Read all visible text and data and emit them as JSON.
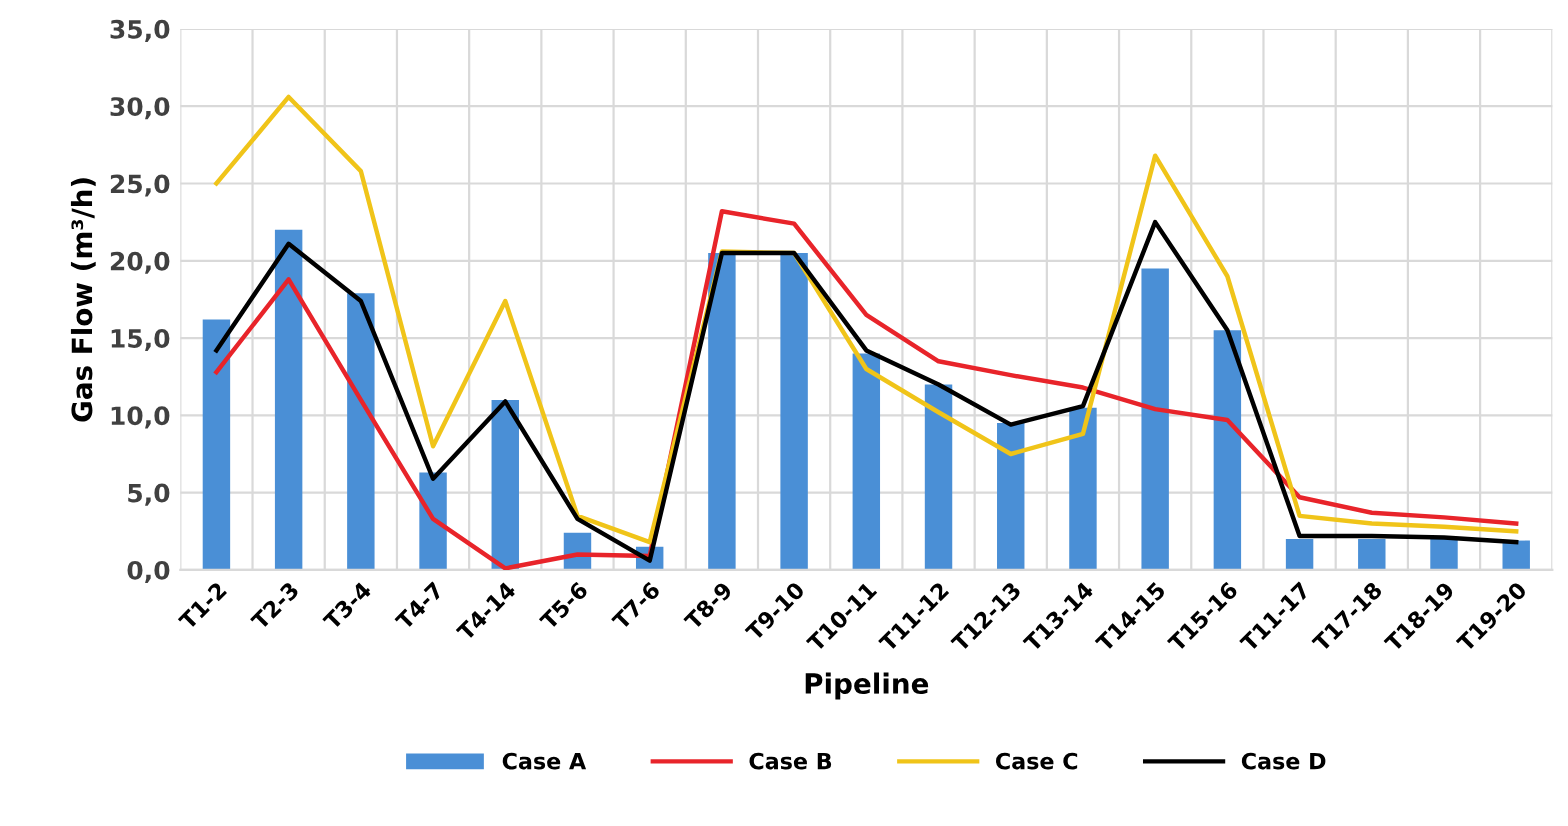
{
  "chart_data": {
    "type": "bar",
    "xlabel": "Pipeline",
    "ylabel": "Gas Flow (m³/h)",
    "categories": [
      "T1-2",
      "T2-3",
      "T3-4",
      "T4-7",
      "T4-14",
      "T5-6",
      "T7-6",
      "T8-9",
      "T9-10",
      "T10-11",
      "T11-12",
      "T12-13",
      "T13-14",
      "T14-15",
      "T15-16",
      "T11-17",
      "T17-18",
      "T18-19",
      "T19-20"
    ],
    "series": [
      {
        "name": "Case A",
        "color": "#4a8fd6",
        "values": [
          16.2,
          22.0,
          17.9,
          6.3,
          11.0,
          2.4,
          1.5,
          20.5,
          20.5,
          14.0,
          12.0,
          9.5,
          10.5,
          19.5,
          15.5,
          2.0,
          2.0,
          2.0,
          1.9
        ]
      },
      {
        "name": "Case B",
        "type": "line",
        "color": "#e8242a",
        "values": [
          12.8,
          18.8,
          11.0,
          3.3,
          0.1,
          1.0,
          0.9,
          23.2,
          22.4,
          16.5,
          13.5,
          12.6,
          11.8,
          10.4,
          9.7,
          4.7,
          3.7,
          3.4,
          3.0
        ]
      },
      {
        "name": "Case C",
        "type": "line",
        "color": "#f0c419",
        "values": [
          25.0,
          30.6,
          25.8,
          8.0,
          17.4,
          3.5,
          1.8,
          20.6,
          20.5,
          13.0,
          10.2,
          7.5,
          8.8,
          26.8,
          19.0,
          3.5,
          3.0,
          2.8,
          2.5
        ]
      },
      {
        "name": "Case D",
        "type": "line",
        "color": "#000000",
        "values": [
          14.2,
          21.1,
          17.4,
          5.9,
          10.9,
          3.3,
          0.6,
          20.5,
          20.5,
          14.2,
          12.0,
          9.4,
          10.6,
          22.5,
          15.5,
          2.2,
          2.2,
          2.1,
          1.8
        ]
      }
    ],
    "ylim": [
      0,
      35
    ],
    "yticks": [
      {
        "value": 0,
        "label": "0,0"
      },
      {
        "value": 5,
        "label": "5,0"
      },
      {
        "value": 10,
        "label": "10,0"
      },
      {
        "value": 15,
        "label": "15,0"
      },
      {
        "value": 20,
        "label": "20,0"
      },
      {
        "value": 25,
        "label": "25,0"
      },
      {
        "value": 30,
        "label": "30,0"
      },
      {
        "value": 35,
        "label": "35,0"
      }
    ],
    "grid": true,
    "legend": "bottom",
    "line_style": "solid",
    "marker": "none"
  }
}
